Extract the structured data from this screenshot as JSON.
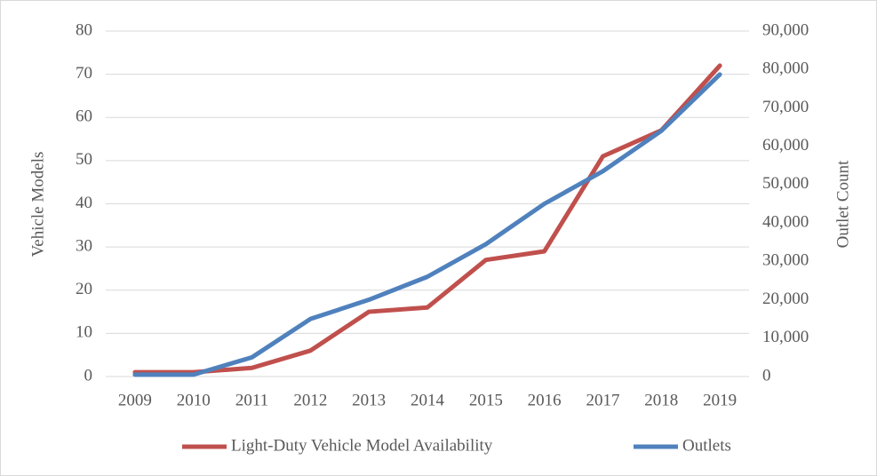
{
  "chart_data": {
    "type": "line",
    "y_label": "Vehicle Models",
    "y2_label": "Outlet Count",
    "categories": [
      "2009",
      "2010",
      "2011",
      "2012",
      "2013",
      "2014",
      "2015",
      "2016",
      "2017",
      "2018",
      "2019"
    ],
    "series": [
      {
        "name": "Light-Duty Vehicle Model Availability",
        "color": "#c0504d",
        "values": [
          1,
          1,
          2,
          6,
          15,
          16,
          27,
          29,
          51,
          57,
          72
        ]
      },
      {
        "name": "Outlets",
        "color": "#4f81bd",
        "axis": "y2",
        "values": [
          500,
          500,
          5000,
          15000,
          20000,
          26000,
          34500,
          45000,
          53500,
          64000,
          78700
        ]
      }
    ],
    "ylim": [
      0,
      80
    ],
    "yticks": [
      0,
      10,
      20,
      30,
      40,
      50,
      60,
      70,
      80
    ],
    "y2lim": [
      0,
      90000
    ],
    "y2ticks": [
      0,
      {
        "value": 10000,
        "label": "10,000"
      },
      {
        "value": 20000,
        "label": "20,000"
      },
      {
        "value": 30000,
        "label": "30,000"
      },
      {
        "value": 40000,
        "label": "40,000"
      },
      {
        "value": 50000,
        "label": "50,000"
      },
      {
        "value": 60000,
        "label": "60,000"
      },
      {
        "value": 70000,
        "label": "70,000"
      },
      {
        "value": 80000,
        "label": "80,000"
      },
      {
        "value": 90000,
        "label": "90,000"
      }
    ],
    "grid": true,
    "legend": "bottom"
  }
}
